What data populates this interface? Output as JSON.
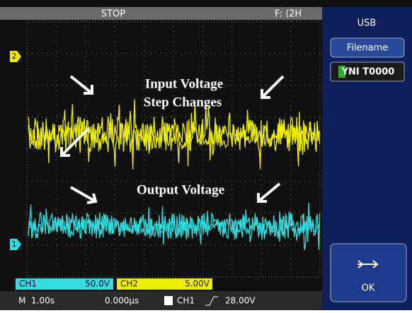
{
  "top_bar": {
    "status": "STOP",
    "trigger": "F: ⟨2H"
  },
  "side_menu": {
    "title": "USB",
    "filename_label": "Filename",
    "filename_value": "YNI T0000",
    "ok": "OK"
  },
  "markers": {
    "ch2": "2",
    "ch1": "1"
  },
  "annotations": {
    "input_line1": "Input Voltage",
    "input_line2": "Step Changes",
    "output": "Output  Voltage"
  },
  "channels": {
    "ch1_label": "CH1",
    "ch1_scale": "50.0V",
    "ch2_label": "CH2",
    "ch2_scale": "5.00V"
  },
  "status_bar": {
    "mode": "M",
    "timebase": "1.00s",
    "offset": "0.000μs",
    "trigger_source": "CH1",
    "trigger_level": "28.00V"
  }
}
